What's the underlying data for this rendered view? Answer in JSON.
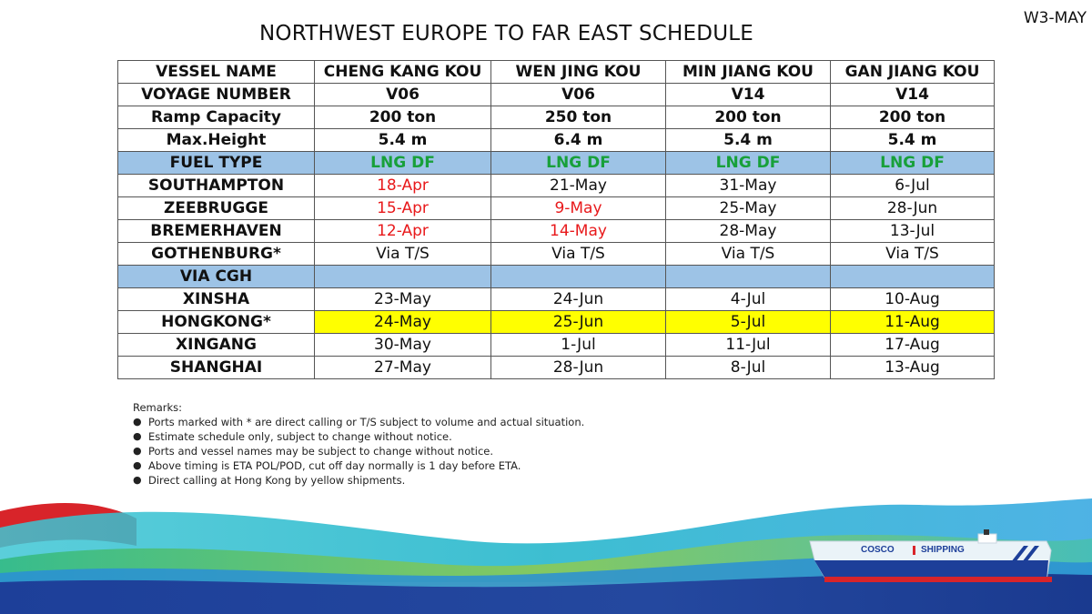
{
  "week_tag": "W3-MAY",
  "title": "NORTHWEST EUROPE TO FAR EAST SCHEDULE",
  "table": {
    "rows": [
      {
        "label": "VESSEL NAME",
        "cells": [
          "CHENG KANG KOU",
          "WEN JING KOU",
          "MIN JIANG KOU",
          "GAN JIANG KOU"
        ]
      },
      {
        "label": "VOYAGE NUMBER",
        "cells": [
          "V06",
          "V06",
          "V14",
          "V14"
        ]
      },
      {
        "label": "Ramp Capacity",
        "cells": [
          "200 ton",
          "250 ton",
          "200 ton",
          "200 ton"
        ]
      },
      {
        "label": "Max.Height",
        "cells": [
          "5.4 m",
          "6.4 m",
          "5.4 m",
          "5.4 m"
        ]
      },
      {
        "label": "FUEL TYPE",
        "cells": [
          "LNG DF",
          "LNG DF",
          "LNG DF",
          "LNG DF"
        ]
      },
      {
        "label": "SOUTHAMPTON",
        "cells": [
          "18-Apr",
          "21-May",
          "31-May",
          "6-Jul"
        ]
      },
      {
        "label": "ZEEBRUGGE",
        "cells": [
          "15-Apr",
          "9-May",
          "25-May",
          "28-Jun"
        ]
      },
      {
        "label": "BREMERHAVEN",
        "cells": [
          "12-Apr",
          "14-May",
          "28-May",
          "13-Jul"
        ]
      },
      {
        "label": "GOTHENBURG*",
        "cells": [
          "Via T/S",
          "Via T/S",
          "Via T/S",
          "Via T/S"
        ]
      },
      {
        "label": "VIA CGH",
        "cells": [
          "",
          "",
          "",
          ""
        ]
      },
      {
        "label": "XINSHA",
        "cells": [
          "23-May",
          "24-Jun",
          "4-Jul",
          "10-Aug"
        ]
      },
      {
        "label": "HONGKONG*",
        "cells": [
          "24-May",
          "25-Jun",
          "5-Jul",
          "11-Aug"
        ]
      },
      {
        "label": "XINGANG",
        "cells": [
          "30-May",
          "1-Jul",
          "11-Jul",
          "17-Aug"
        ]
      },
      {
        "label": "SHANGHAI",
        "cells": [
          "27-May",
          "28-Jun",
          "8-Jul",
          "13-Aug"
        ]
      }
    ]
  },
  "remarks": {
    "heading": "Remarks:",
    "items": [
      "Ports marked with * are direct calling or T/S subject to volume and actual situation.",
      "Estimate schedule only, subject to change without notice.",
      "Ports and vessel names may be subject to change without notice.",
      "Above timing is ETA POL/POD, cut off day normally is 1 day before ETA.",
      "Direct calling at Hong Kong by yellow shipments."
    ]
  },
  "ship_logo": {
    "left": "COSCO",
    "right": "SHIPPING"
  },
  "colors": {
    "header_blue": "#9dc3e6",
    "highlight_yellow": "#ffff00",
    "fuel_green": "#18a03a",
    "alert_red": "#e8191b",
    "wave_navy": "#1f3f9a",
    "wave_teal": "#1bb3c9",
    "ship_red": "#d8242a"
  }
}
